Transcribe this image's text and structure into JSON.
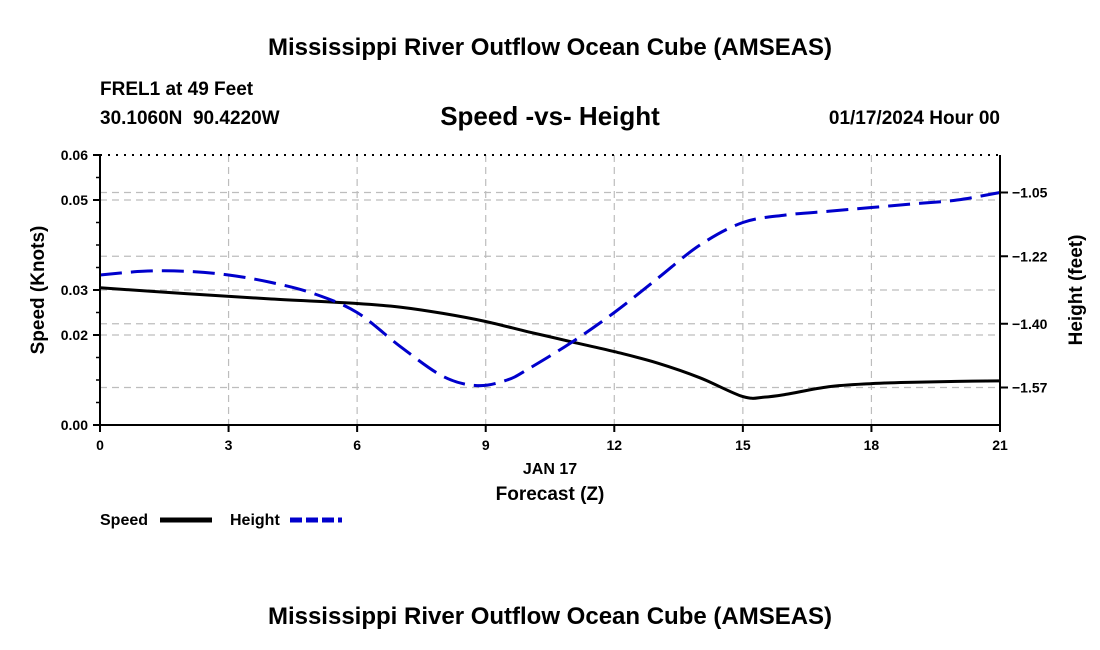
{
  "page": {
    "main_title": "Mississippi River Outflow Ocean Cube (AMSEAS)",
    "bottom_title": "Mississippi River Outflow Ocean Cube (AMSEAS)"
  },
  "station": {
    "name_line": "FREL1 at 49 Feet",
    "coords_line": "30.1060N  90.4220W"
  },
  "timestamp": "01/17/2024 Hour 00",
  "chart_data": {
    "type": "line",
    "title": "Speed -vs- Height",
    "xlabel": "Forecast (Z)",
    "date_label": "JAN 17",
    "ylabel_left": "Speed (Knots)",
    "ylabel_right": "Height (feet)",
    "xlim": [
      0,
      21
    ],
    "ylim_left": [
      0.0,
      0.06
    ],
    "ylim_right": [
      -1.67,
      -0.95
    ],
    "x_ticks": [
      0,
      3,
      6,
      9,
      12,
      15,
      18,
      21
    ],
    "x_tick_labels": [
      "0",
      "3",
      "6",
      "9",
      "12",
      "15",
      "18",
      "21"
    ],
    "y_left_ticks": [
      0.0,
      0.02,
      0.03,
      0.05,
      0.06
    ],
    "y_left_tick_labels": [
      "0.00",
      "0.02",
      "0.03",
      "0.05",
      "0.06"
    ],
    "y_right_ticks": [
      -1.57,
      -1.4,
      -1.22,
      -1.05
    ],
    "y_right_tick_labels": [
      "−1.57",
      "−1.40",
      "−1.22",
      "−1.05"
    ],
    "grid": true,
    "series": [
      {
        "name": "Speed",
        "axis": "left",
        "color": "#000000",
        "style": "solid",
        "x": [
          0,
          2,
          4,
          6,
          7,
          8,
          9,
          10,
          11,
          12,
          13,
          14,
          15,
          15.5,
          16,
          17,
          18,
          19,
          20,
          21
        ],
        "values": [
          0.0305,
          0.0292,
          0.028,
          0.027,
          0.0262,
          0.0248,
          0.023,
          0.0207,
          0.0185,
          0.0163,
          0.0138,
          0.0105,
          0.0063,
          0.0062,
          0.0068,
          0.0085,
          0.0092,
          0.0095,
          0.0097,
          0.0098
        ]
      },
      {
        "name": "Height",
        "axis": "right",
        "color": "#0000cc",
        "style": "dashed",
        "x": [
          0,
          1,
          2,
          3,
          4,
          5,
          6,
          7,
          8,
          8.8,
          9.5,
          10,
          11,
          12,
          13,
          14,
          15,
          16,
          17,
          18,
          19,
          20,
          21
        ],
        "values": [
          -1.27,
          -1.26,
          -1.26,
          -1.27,
          -1.29,
          -1.32,
          -1.37,
          -1.46,
          -1.54,
          -1.565,
          -1.55,
          -1.52,
          -1.45,
          -1.37,
          -1.28,
          -1.19,
          -1.13,
          -1.11,
          -1.1,
          -1.09,
          -1.08,
          -1.07,
          -1.05
        ]
      }
    ]
  },
  "legend": {
    "speed_label": "Speed",
    "height_label": "Height"
  }
}
